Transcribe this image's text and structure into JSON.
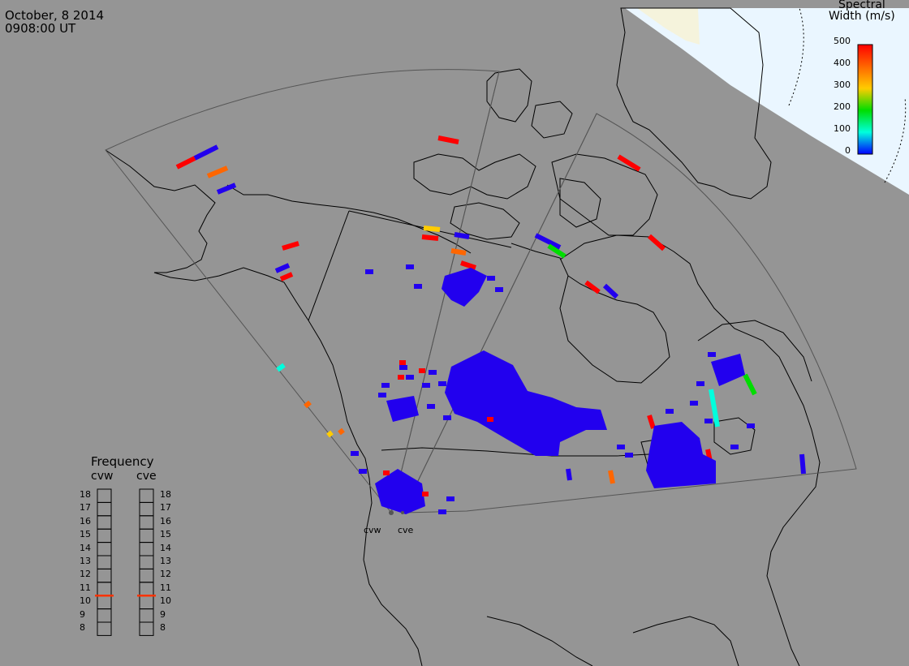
{
  "header": {
    "date": "October, 8 2014",
    "time": "0908:00 UT"
  },
  "colorbar": {
    "title_line1": "Spectral",
    "title_line2": "Width (m/s)",
    "ticks": [
      "500",
      "400",
      "300",
      "200",
      "100",
      "0"
    ],
    "colors": [
      "#ff0000",
      "#ff6600",
      "#ffcc00",
      "#00dd00",
      "#00ffdd",
      "#0000ff"
    ]
  },
  "frequency_panel": {
    "title": "Frequency",
    "columns": [
      "cvw",
      "cve"
    ],
    "levels": [
      "18",
      "17",
      "16",
      "15",
      "14",
      "13",
      "12",
      "11",
      "10",
      "9",
      "8"
    ],
    "cvw_value": 10.5,
    "cve_value": 10.5,
    "marker_color": "#ff3300"
  },
  "radars": [
    {
      "label": "cvw"
    },
    {
      "label": "cve"
    }
  ],
  "colors": {
    "background": "#959595",
    "land_line": "#000000",
    "fov_line": "#555555",
    "daylight": "#eaf6ff",
    "land_day": "#f5f3dc",
    "low_width": "#2200ee"
  }
}
